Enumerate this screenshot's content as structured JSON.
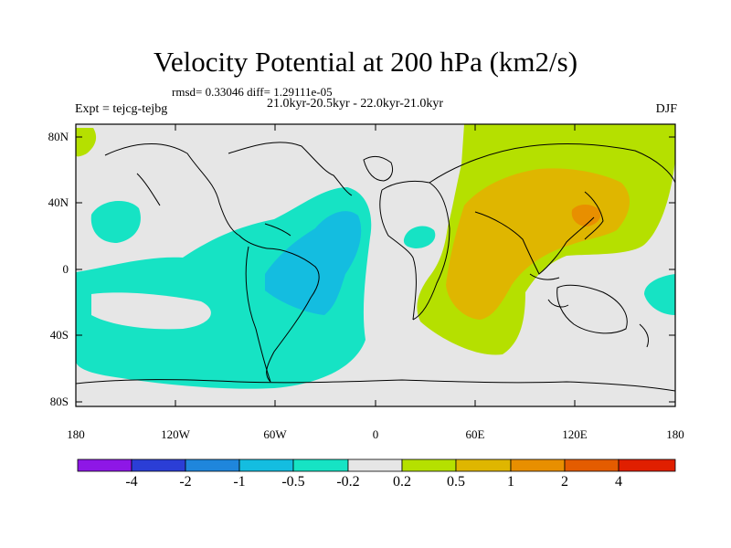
{
  "title": "Velocity Potential at 200 hPa (km2/s)",
  "stats_line": "rmsd= 0.33046  diff= 1.29111e-05",
  "period_line": "21.0kyr-20.5kyr - 22.0kyr-21.0kyr",
  "experiment_line": "Expt = tejcg-tejbg",
  "season": "DJF",
  "lat_labels": [
    "80N",
    "40N",
    "0",
    "40S",
    "80S"
  ],
  "lon_labels": [
    "180",
    "120W",
    "60W",
    "0",
    "60E",
    "120E",
    "180"
  ],
  "colorbar": {
    "labels": [
      "-4",
      "-2",
      "-1",
      "-0.5",
      "-0.2",
      "0.2",
      "0.5",
      "1",
      "2",
      "4"
    ],
    "colors": [
      "#8e17e6",
      "#2b3ed6",
      "#1f86dc",
      "#14bde0",
      "#16e3c4",
      "#e6e6e6",
      "#b5e000",
      "#dfb600",
      "#e88f00",
      "#e45c00",
      "#e01f00"
    ]
  },
  "regions": {
    "positive_1": "#b5e000",
    "positive_2": "#dfb600",
    "positive_3": "#e88f00",
    "negative_1": "#16e3c4",
    "negative_2": "#14bde0",
    "background": "#e6e6e6"
  }
}
